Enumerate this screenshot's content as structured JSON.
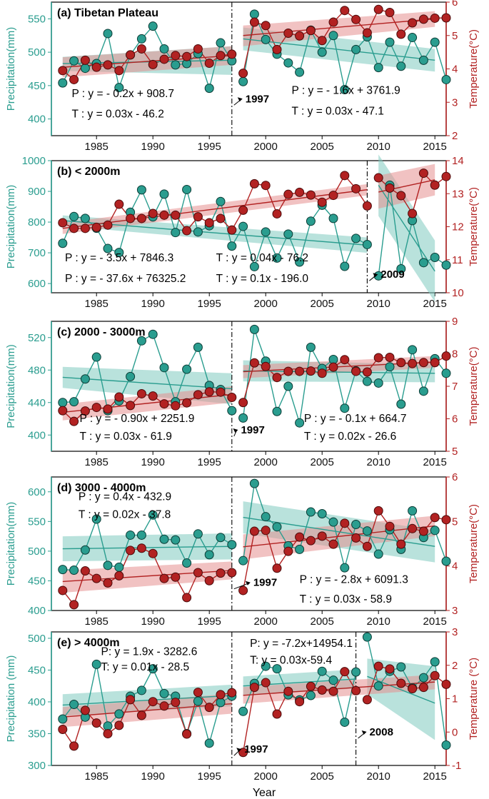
{
  "colors": {
    "precip": "#2a9d8f",
    "temp": "#b22222",
    "precip_band": "#7fcbc0",
    "temp_band": "#e58f8f"
  },
  "xlabel": "Year",
  "chart_data": [
    {
      "type": "line",
      "title": "(a) Tibetan Plateau",
      "ylabel": "Precipitation(mm)",
      "y2label": "Temperature(°C)",
      "xlim": [
        1981,
        2016
      ],
      "xticks": [
        1985,
        1990,
        1995,
        2000,
        2005,
        2010,
        2015
      ],
      "ylim": [
        375,
        575
      ],
      "yticks": [
        400,
        450,
        500,
        550
      ],
      "y2lim": [
        2,
        6
      ],
      "y2ticks": [
        2,
        3,
        4,
        5,
        6
      ],
      "breaks": [
        1997
      ],
      "break_labels": [
        {
          "text": "1997",
          "x": 1998.2,
          "y2": 3.0
        }
      ],
      "precip": [
        454,
        487,
        476,
        483,
        528,
        447,
        496,
        520,
        539,
        505,
        481,
        483,
        498,
        446,
        514,
        487,
        456,
        557,
        519,
        497,
        484,
        470,
        533,
        500,
        525,
        444,
        504,
        523,
        477,
        515,
        479,
        522,
        488,
        515,
        459
      ],
      "temp": [
        3.95,
        3.68,
        4.26,
        4.05,
        4.12,
        3.95,
        4.42,
        4.6,
        4.13,
        4.29,
        4.4,
        4.37,
        4.6,
        4.17,
        4.4,
        4.44,
        3.87,
        5.4,
        5.3,
        4.58,
        5.07,
        4.99,
        5.15,
        4.85,
        5.4,
        5.75,
        5.48,
        5.08,
        5.78,
        5.69,
        5.04,
        5.38,
        5.49,
        5.52,
        5.53
      ],
      "fits": [
        {
          "var": "precip",
          "x": [
            1982,
            1997
          ],
          "y": [
            483,
            488
          ],
          "band": [
            [
              472,
              493
            ],
            [
              466,
              509
            ]
          ]
        },
        {
          "var": "precip",
          "x": [
            1998,
            2015
          ],
          "y": [
            520,
            488
          ],
          "band": [
            [
              503,
              537
            ],
            [
              471,
              505
            ]
          ]
        },
        {
          "var": "temp",
          "x": [
            1982,
            1997
          ],
          "y": [
            4.05,
            4.4
          ],
          "band": [
            [
              3.75,
              4.35
            ],
            [
              4.12,
              4.68
            ]
          ]
        },
        {
          "var": "temp",
          "x": [
            1998,
            2015
          ],
          "y": [
            5.0,
            5.5
          ],
          "band": [
            [
              4.68,
              5.3
            ],
            [
              5.26,
              5.73
            ]
          ]
        }
      ],
      "equations": [
        {
          "text": "P : y = - 0.2x + 908.7",
          "x": 1982.8,
          "y2": 3.15
        },
        {
          "text": "T : y = 0.03x - 46.2",
          "x": 1982.8,
          "y2": 2.55
        },
        {
          "text": "P : y = - 1.6x + 3761.9",
          "x": 2002.3,
          "y2": 3.25
        },
        {
          "text": "T : y = 0.03x - 47.1",
          "x": 2002.3,
          "y2": 2.63
        }
      ]
    },
    {
      "type": "line",
      "title": "(b)  < 2000m",
      "ylabel": "Precipitation(mm)",
      "y2label": "Temperature(°C)",
      "xlim": [
        1981,
        2016
      ],
      "xticks": [
        1985,
        1990,
        1995,
        2000,
        2005,
        2010,
        2015
      ],
      "ylim": [
        570,
        1000
      ],
      "yticks": [
        600,
        700,
        800,
        900,
        1000
      ],
      "y2lim": [
        10,
        14
      ],
      "y2ticks": [
        10,
        11,
        12,
        13,
        14
      ],
      "breaks": [
        2009
      ],
      "break_labels": [
        {
          "text": "2009",
          "x": 2010.2,
          "y2": 10.45
        }
      ],
      "precip": [
        731,
        818,
        812,
        780,
        714,
        701,
        832,
        905,
        817,
        891,
        766,
        906,
        768,
        788,
        867,
        722,
        786,
        655,
        768,
        683,
        761,
        670,
        803,
        855,
        812,
        656,
        747,
        727,
        625,
        920,
        648,
        805,
        668,
        685,
        660
      ],
      "temp": [
        12.12,
        11.95,
        11.95,
        11.98,
        12.05,
        12.68,
        12.25,
        12.25,
        12.4,
        12.35,
        12.35,
        11.88,
        12.3,
        12.12,
        12.25,
        11.9,
        12.5,
        13.3,
        13.25,
        12.39,
        12.98,
        13.04,
        12.96,
        12.74,
        12.95,
        13.55,
        13.15,
        12.63,
        13.48,
        13.17,
        12.94,
        12.4,
        13.62,
        13.26,
        13.52
      ],
      "fits": [
        {
          "var": "precip",
          "x": [
            1982,
            2009
          ],
          "y": [
            805,
            725
          ],
          "band": [
            [
              788,
              822
            ],
            [
              700,
              750
            ]
          ]
        },
        {
          "var": "precip",
          "x": [
            2010,
            2015
          ],
          "y": [
            920,
            640
          ],
          "band": [
            [
              820,
              1020
            ],
            [
              540,
              740
            ]
          ]
        },
        {
          "var": "temp",
          "x": [
            1982,
            2009
          ],
          "y": [
            11.95,
            13.12
          ],
          "band": [
            [
              11.78,
              12.12
            ],
            [
              12.95,
              13.29
            ]
          ]
        },
        {
          "var": "temp",
          "x": [
            2010,
            2015
          ],
          "y": [
            13.05,
            13.42
          ],
          "band": [
            [
              12.55,
              13.55
            ],
            [
              12.95,
              13.9
            ]
          ]
        }
      ],
      "equations": [
        {
          "text": "P : y = - 3.5x + 7846.3",
          "x": 1982.2,
          "y2": 10.95
        },
        {
          "text": "P : y = - 37.6x + 76325.2",
          "x": 1982.2,
          "y2": 10.32
        },
        {
          "text": "T : y = 0.04x - 76.2",
          "x": 1995.6,
          "y2": 10.95
        },
        {
          "text": "T : y = 0.1x - 196.0",
          "x": 1995.6,
          "y2": 10.32
        }
      ]
    },
    {
      "type": "line",
      "title": "(c) 2000 - 3000m",
      "ylabel": "Precipitation(mm)",
      "y2label": "Temperature(°C)",
      "xlim": [
        1981,
        2016
      ],
      "xticks": [
        1985,
        1990,
        1995,
        2000,
        2005,
        2010,
        2015
      ],
      "ylim": [
        380,
        540
      ],
      "yticks": [
        400,
        440,
        480,
        520
      ],
      "y2lim": [
        5,
        9
      ],
      "y2ticks": [
        5,
        6,
        7,
        8,
        9
      ],
      "breaks": [
        1997
      ],
      "break_labels": [
        {
          "text": "1997",
          "x": 1997.8,
          "y2": 5.55
        }
      ],
      "precip": [
        440,
        441,
        469,
        496,
        430,
        442,
        472,
        516,
        524,
        483,
        441,
        481,
        508,
        461,
        456,
        430,
        421,
        530,
        491,
        429,
        460,
        415,
        508,
        482,
        493,
        433,
        479,
        466,
        464,
        484,
        438,
        505,
        454,
        494,
        476
      ],
      "temp": [
        6.25,
        5.92,
        6.24,
        6.35,
        6.3,
        6.67,
        6.41,
        6.77,
        6.7,
        6.46,
        6.4,
        6.49,
        6.74,
        6.83,
        6.82,
        6.66,
        6.5,
        7.72,
        7.61,
        7.27,
        7.46,
        7.46,
        7.47,
        7.4,
        7.59,
        7.82,
        7.46,
        7.44,
        7.88,
        7.89,
        7.73,
        7.7,
        7.73,
        7.73,
        7.93
      ],
      "fits": [
        {
          "var": "precip",
          "x": [
            1982,
            1997
          ],
          "y": [
            471,
            457
          ],
          "band": [
            [
              458,
              484
            ],
            [
              438,
              476
            ]
          ]
        },
        {
          "var": "precip",
          "x": [
            1998,
            2015
          ],
          "y": [
            479,
            476
          ],
          "band": [
            [
              466,
              492
            ],
            [
              465,
              487
            ]
          ]
        },
        {
          "var": "temp",
          "x": [
            1982,
            1997
          ],
          "y": [
            6.2,
            6.75
          ],
          "band": [
            [
              5.95,
              6.45
            ],
            [
              6.5,
              7.0
            ]
          ]
        },
        {
          "var": "temp",
          "x": [
            1998,
            2015
          ],
          "y": [
            7.45,
            7.75
          ],
          "band": [
            [
              7.25,
              7.65
            ],
            [
              7.57,
              7.93
            ]
          ]
        }
      ],
      "equations": [
        {
          "text": "P : y = - 0.90x + 2251.9",
          "x": 1983.5,
          "y2": 5.9
        },
        {
          "text": "T : y = 0.03x - 61.9",
          "x": 1983.5,
          "y2": 5.35
        },
        {
          "text": "P : y = - 0.1x + 664.7",
          "x": 2003.4,
          "y2": 5.9
        },
        {
          "text": "T : y = 0.02x - 26.6",
          "x": 2003.4,
          "y2": 5.35
        }
      ]
    },
    {
      "type": "line",
      "title": "(d) 3000 - 4000m",
      "ylabel": "Precipitation(mm)",
      "y2label": "Temperature(°C)",
      "xlim": [
        1981,
        2016
      ],
      "xticks": [
        1985,
        1990,
        1995,
        2000,
        2005,
        2010,
        2015
      ],
      "ylim": [
        400,
        625
      ],
      "yticks": [
        400,
        450,
        500,
        550,
        600
      ],
      "y2lim": [
        3,
        6
      ],
      "y2ticks": [
        3,
        4,
        5,
        6
      ],
      "breaks": [
        1997
      ],
      "break_labels": [
        {
          "text": "1997",
          "x": 1998.9,
          "y2": 3.55
        }
      ],
      "precip": [
        469,
        468,
        502,
        554,
        476,
        473,
        527,
        527,
        561,
        520,
        519,
        480,
        529,
        494,
        523,
        511,
        484,
        614,
        558,
        541,
        509,
        503,
        566,
        563,
        549,
        472,
        545,
        534,
        495,
        536,
        503,
        568,
        523,
        535,
        483
      ],
      "temp": [
        3.45,
        3.13,
        3.89,
        3.72,
        3.62,
        3.78,
        4.35,
        4.4,
        4.28,
        3.72,
        3.75,
        3.29,
        3.85,
        3.67,
        3.84,
        3.85,
        3.45,
        4.78,
        4.8,
        3.95,
        4.33,
        4.65,
        4.57,
        4.67,
        4.49,
        4.96,
        4.63,
        4.44,
        5.24,
        4.89,
        4.49,
        4.84,
        4.78,
        5.09,
        5.04
      ],
      "fits": [
        {
          "var": "precip",
          "x": [
            1982,
            1997
          ],
          "y": [
            504,
            508
          ],
          "band": [
            [
              483,
              525
            ],
            [
              486,
              530
            ]
          ]
        },
        {
          "var": "precip",
          "x": [
            1998,
            2015
          ],
          "y": [
            557,
            508
          ],
          "band": [
            [
              530,
              584
            ],
            [
              481,
              535
            ]
          ]
        },
        {
          "var": "temp",
          "x": [
            1982,
            1997
          ],
          "y": [
            3.65,
            3.9
          ],
          "band": [
            [
              3.4,
              3.9
            ],
            [
              3.7,
              4.1
            ]
          ]
        },
        {
          "var": "temp",
          "x": [
            1998,
            2015
          ],
          "y": [
            4.43,
            4.9
          ],
          "band": [
            [
              4.15,
              4.71
            ],
            [
              4.67,
              5.13
            ]
          ]
        }
      ],
      "equations": [
        {
          "text": "P : y = 0.4x - 432.9",
          "x": 1983.4,
          "y2": 5.48
        },
        {
          "text": "T : y = 0.02x - 37.8",
          "x": 1983.4,
          "y2": 5.08
        },
        {
          "text": "P : y = - 2.8x + 6091.3",
          "x": 2003.0,
          "y2": 3.62
        },
        {
          "text": "T : y = 0.03x - 58.9",
          "x": 2003.0,
          "y2": 3.18
        }
      ]
    },
    {
      "type": "line",
      "title": "(e) > 4000m",
      "ylabel": "Precipitation (mm)",
      "y2label": "Temperature (°C)",
      "xlim": [
        1981,
        2016
      ],
      "xticks": [
        1985,
        1990,
        1995,
        2000,
        2005,
        2010,
        2015
      ],
      "ylim": [
        300,
        510
      ],
      "yticks": [
        300,
        350,
        400,
        450,
        500
      ],
      "y2lim": [
        -1,
        3
      ],
      "y2ticks": [
        -1,
        0,
        1,
        2,
        3
      ],
      "breaks": [
        1997,
        2008
      ],
      "break_labels": [
        {
          "text": "1997",
          "x": 1998.1,
          "y2": -0.62
        },
        {
          "text": "2008",
          "x": 2009.2,
          "y2": -0.1
        }
      ],
      "precip": [
        373,
        396,
        376,
        459,
        362,
        381,
        409,
        418,
        452,
        413,
        409,
        350,
        401,
        335,
        399,
        409,
        385,
        429,
        456,
        452,
        411,
        403,
        410,
        448,
        434,
        368,
        447,
        502,
        425,
        448,
        455,
        422,
        438,
        463,
        332
      ],
      "temp": [
        0.08,
        -0.42,
        0.65,
        0.27,
        -0.05,
        0.2,
        0.97,
        0.5,
        0.91,
        0.78,
        0.89,
        -0.06,
        1.19,
        0.74,
        1.12,
        1.18,
        -0.61,
        1.34,
        1.48,
        0.54,
        1.22,
        0.91,
        1.37,
        1.26,
        1.22,
        1.81,
        1.24,
        0.97,
        1.97,
        1.89,
        1.46,
        1.3,
        1.34,
        1.69,
        1.43
      ],
      "fits": [
        {
          "var": "precip",
          "x": [
            1982,
            1997
          ],
          "y": [
            395,
            410
          ],
          "band": [
            [
              378,
              412
            ],
            [
              393,
              427
            ]
          ]
        },
        {
          "var": "precip",
          "x": [
            1998,
            2008
          ],
          "y": [
            425,
            436
          ],
          "band": [
            [
              410,
              440
            ],
            [
              421,
              451
            ]
          ]
        },
        {
          "var": "precip",
          "x": [
            2009,
            2015
          ],
          "y": [
            440,
            398
          ],
          "band": [
            [
              412,
              468
            ],
            [
              340,
              456
            ]
          ]
        },
        {
          "var": "temp",
          "x": [
            1982,
            1997
          ],
          "y": [
            0.45,
            0.85
          ],
          "band": [
            [
              0.15,
              0.75
            ],
            [
              0.55,
              1.15
            ]
          ]
        },
        {
          "var": "temp",
          "x": [
            1998,
            2015
          ],
          "y": [
            1.1,
            1.5
          ],
          "band": [
            [
              0.85,
              1.35
            ],
            [
              1.28,
              1.72
            ]
          ]
        }
      ],
      "equations": [
        {
          "text": "P: y = 1.9x - 3282.6",
          "x": 1985.4,
          "y2": 2.3
        },
        {
          "text": "T: y = 0.01x - 28.5",
          "x": 1985.4,
          "y2": 1.85
        },
        {
          "text": "P: y = -7.2x+14954.1",
          "x": 1998.6,
          "y2": 2.55
        },
        {
          "text": "T: y = 0.03x-59.4",
          "x": 1998.6,
          "y2": 2.05
        }
      ]
    }
  ]
}
